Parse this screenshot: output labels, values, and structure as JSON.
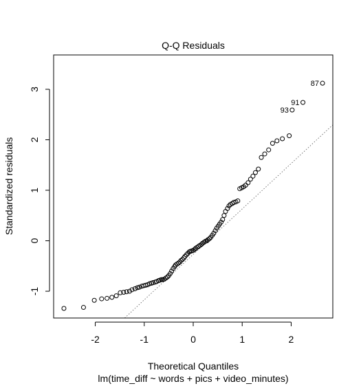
{
  "chart_data": {
    "type": "scatter",
    "title": "Q-Q Residuals",
    "xlabel": "Theoretical Quantiles",
    "subtitle": "lm(time_diff ~ words + pics + video_minutes)",
    "ylabel": "Standardized residuals",
    "xlim": [
      -2.85,
      2.85
    ],
    "ylim": [
      -1.53,
      3.68
    ],
    "x_ticks": [
      -2,
      -1,
      0,
      1,
      2
    ],
    "y_ticks": [
      -1,
      0,
      1,
      2,
      3
    ],
    "grid": false,
    "reference_line": {
      "slope": 0.9,
      "intercept": -0.27,
      "style": "dotted"
    },
    "point_labels": [
      {
        "label": "87",
        "x": 2.64,
        "y": 3.12
      },
      {
        "label": "91",
        "x": 2.24,
        "y": 2.74
      },
      {
        "label": "93",
        "x": 2.02,
        "y": 2.59
      }
    ],
    "points": [
      [
        -2.64,
        -1.34
      ],
      [
        -2.24,
        -1.32
      ],
      [
        -2.02,
        -1.18
      ],
      [
        -1.87,
        -1.15
      ],
      [
        -1.76,
        -1.14
      ],
      [
        -1.66,
        -1.12
      ],
      [
        -1.57,
        -1.09
      ],
      [
        -1.49,
        -1.03
      ],
      [
        -1.42,
        -1.02
      ],
      [
        -1.36,
        -1.01
      ],
      [
        -1.3,
        -1.0
      ],
      [
        -1.25,
        -0.97
      ],
      [
        -1.19,
        -0.95
      ],
      [
        -1.14,
        -0.93
      ],
      [
        -1.1,
        -0.92
      ],
      [
        -1.05,
        -0.9
      ],
      [
        -1.01,
        -0.89
      ],
      [
        -0.97,
        -0.88
      ],
      [
        -0.93,
        -0.87
      ],
      [
        -0.89,
        -0.85
      ],
      [
        -0.85,
        -0.84
      ],
      [
        -0.82,
        -0.83
      ],
      [
        -0.78,
        -0.82
      ],
      [
        -0.75,
        -0.81
      ],
      [
        -0.71,
        -0.79
      ],
      [
        -0.68,
        -0.78
      ],
      [
        -0.65,
        -0.77
      ],
      [
        -0.62,
        -0.77
      ],
      [
        -0.59,
        -0.76
      ],
      [
        -0.56,
        -0.74
      ],
      [
        -0.53,
        -0.72
      ],
      [
        -0.5,
        -0.69
      ],
      [
        -0.47,
        -0.65
      ],
      [
        -0.44,
        -0.6
      ],
      [
        -0.41,
        -0.55
      ],
      [
        -0.38,
        -0.51
      ],
      [
        -0.36,
        -0.48
      ],
      [
        -0.33,
        -0.46
      ],
      [
        -0.3,
        -0.44
      ],
      [
        -0.27,
        -0.42
      ],
      [
        -0.25,
        -0.39
      ],
      [
        -0.22,
        -0.37
      ],
      [
        -0.19,
        -0.34
      ],
      [
        -0.17,
        -0.31
      ],
      [
        -0.14,
        -0.28
      ],
      [
        -0.11,
        -0.25
      ],
      [
        -0.08,
        -0.22
      ],
      [
        -0.06,
        -0.21
      ],
      [
        -0.03,
        -0.2
      ],
      [
        0.0,
        -0.19
      ],
      [
        0.03,
        -0.17
      ],
      [
        0.05,
        -0.15
      ],
      [
        0.08,
        -0.13
      ],
      [
        0.11,
        -0.11
      ],
      [
        0.14,
        -0.09
      ],
      [
        0.17,
        -0.07
      ],
      [
        0.19,
        -0.05
      ],
      [
        0.22,
        -0.03
      ],
      [
        0.25,
        -0.01
      ],
      [
        0.28,
        0.0
      ],
      [
        0.3,
        0.02
      ],
      [
        0.33,
        0.04
      ],
      [
        0.36,
        0.07
      ],
      [
        0.39,
        0.11
      ],
      [
        0.42,
        0.15
      ],
      [
        0.45,
        0.2
      ],
      [
        0.48,
        0.25
      ],
      [
        0.51,
        0.29
      ],
      [
        0.54,
        0.33
      ],
      [
        0.57,
        0.37
      ],
      [
        0.6,
        0.42
      ],
      [
        0.63,
        0.5
      ],
      [
        0.66,
        0.58
      ],
      [
        0.7,
        0.64
      ],
      [
        0.73,
        0.69
      ],
      [
        0.76,
        0.72
      ],
      [
        0.8,
        0.74
      ],
      [
        0.83,
        0.76
      ],
      [
        0.87,
        0.77
      ],
      [
        0.91,
        0.79
      ],
      [
        0.95,
        1.03
      ],
      [
        0.99,
        1.05
      ],
      [
        1.03,
        1.07
      ],
      [
        1.07,
        1.1
      ],
      [
        1.12,
        1.15
      ],
      [
        1.17,
        1.22
      ],
      [
        1.22,
        1.28
      ],
      [
        1.27,
        1.35
      ],
      [
        1.33,
        1.42
      ],
      [
        1.39,
        1.65
      ],
      [
        1.46,
        1.72
      ],
      [
        1.54,
        1.8
      ],
      [
        1.62,
        1.93
      ],
      [
        1.71,
        1.98
      ],
      [
        1.82,
        2.02
      ],
      [
        1.96,
        2.08
      ],
      [
        2.02,
        2.59
      ],
      [
        2.24,
        2.74
      ],
      [
        2.64,
        3.12
      ]
    ]
  }
}
